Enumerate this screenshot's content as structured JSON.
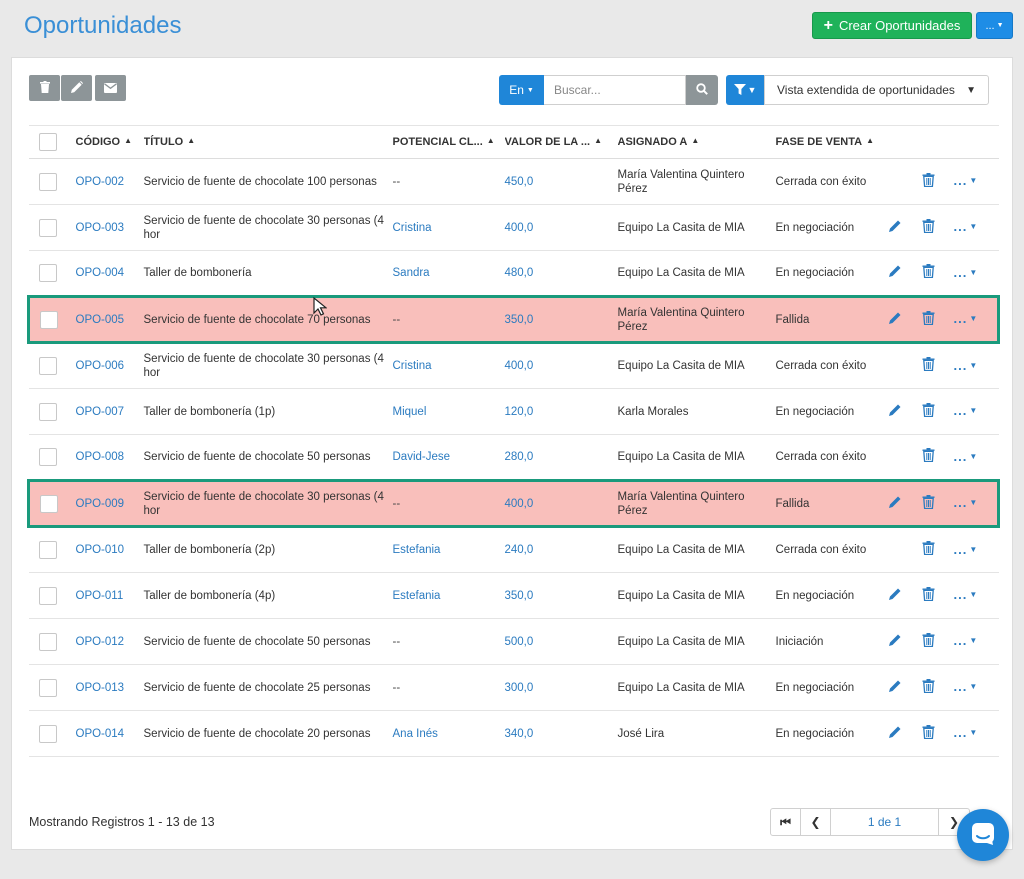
{
  "page": {
    "title": "Oportunidades",
    "create_button": "Crear Oportunidades",
    "more_button": "..."
  },
  "toolbar": {
    "delete_icon": "trash-icon",
    "edit_icon": "pencil-icon",
    "email_icon": "envelope-icon",
    "search_scope": "En",
    "search_placeholder": "Buscar...",
    "search_icon": "search-icon",
    "filter_icon": "filter-icon",
    "view_select": "Vista extendida de oportunidades"
  },
  "table": {
    "headers": {
      "code": "CÓDIGO",
      "title": "TÍTULO",
      "client": "POTENCIAL CL...",
      "value": "VALOR DE LA ...",
      "assigned": "ASIGNADO A",
      "stage": "FASE DE VENTA"
    },
    "rows": [
      {
        "code": "OPO-002",
        "title": "Servicio de fuente de chocolate 100 personas",
        "client": "--",
        "value": "450,0",
        "assigned": "María Valentina Quintero Pérez",
        "stage": "Cerrada con éxito",
        "editable": false,
        "failed": false
      },
      {
        "code": "OPO-003",
        "title": "Servicio de fuente de chocolate 30 personas (4 hor",
        "client": "Cristina",
        "value": "400,0",
        "assigned": "Equipo La Casita de MIA",
        "stage": "En negociación",
        "editable": true,
        "failed": false
      },
      {
        "code": "OPO-004",
        "title": "Taller de bombonería",
        "client": "Sandra",
        "value": "480,0",
        "assigned": "Equipo La Casita de MIA",
        "stage": "En negociación",
        "editable": true,
        "failed": false
      },
      {
        "code": "OPO-005",
        "title": "Servicio de fuente de chocolate 70 personas",
        "client": "--",
        "value": "350,0",
        "assigned": "María Valentina Quintero Pérez",
        "stage": "Fallida",
        "editable": true,
        "failed": true
      },
      {
        "code": "OPO-006",
        "title": "Servicio de fuente de chocolate 30 personas (4 hor",
        "client": "Cristina",
        "value": "400,0",
        "assigned": "Equipo La Casita de MIA",
        "stage": "Cerrada con éxito",
        "editable": false,
        "failed": false
      },
      {
        "code": "OPO-007",
        "title": "Taller de bombonería (1p)",
        "client": "Miquel",
        "value": "120,0",
        "assigned": "Karla Morales",
        "stage": "En negociación",
        "editable": true,
        "failed": false
      },
      {
        "code": "OPO-008",
        "title": "Servicio de fuente de chocolate 50 personas",
        "client": "David-Jese",
        "value": "280,0",
        "assigned": "Equipo La Casita de MIA",
        "stage": "Cerrada con éxito",
        "editable": false,
        "failed": false
      },
      {
        "code": "OPO-009",
        "title": "Servicio de fuente de chocolate 30 personas (4 hor",
        "client": "--",
        "value": "400,0",
        "assigned": "María Valentina Quintero Pérez",
        "stage": "Fallida",
        "editable": true,
        "failed": true
      },
      {
        "code": "OPO-010",
        "title": "Taller de bombonería (2p)",
        "client": "Estefania",
        "value": "240,0",
        "assigned": "Equipo La Casita de MIA",
        "stage": "Cerrada con éxito",
        "editable": false,
        "failed": false
      },
      {
        "code": "OPO-011",
        "title": "Taller de bombonería (4p)",
        "client": "Estefania",
        "value": "350,0",
        "assigned": "Equipo La Casita de MIA",
        "stage": "En negociación",
        "editable": true,
        "failed": false
      },
      {
        "code": "OPO-012",
        "title": "Servicio de fuente de chocolate 50 personas",
        "client": "--",
        "value": "500,0",
        "assigned": "Equipo La Casita de MIA",
        "stage": "Iniciación",
        "editable": true,
        "failed": false
      },
      {
        "code": "OPO-013",
        "title": "Servicio de fuente de chocolate 25 personas",
        "client": "--",
        "value": "300,0",
        "assigned": "Equipo La Casita de MIA",
        "stage": "En negociación",
        "editable": true,
        "failed": false
      },
      {
        "code": "OPO-014",
        "title": "Servicio de fuente de chocolate 20 personas",
        "client": "Ana Inés",
        "value": "340,0",
        "assigned": "José Lira",
        "stage": "En negociación",
        "editable": true,
        "failed": false
      }
    ]
  },
  "footer": {
    "records": "Mostrando Registros 1 - 13 de 13",
    "page_info": "1 de 1"
  },
  "colors": {
    "accent": "#1f86d8",
    "create": "#1fb25a",
    "failed_row": "#f9bfbb",
    "highlight_border": "#1a9a7c",
    "link": "#2b7bc0"
  }
}
